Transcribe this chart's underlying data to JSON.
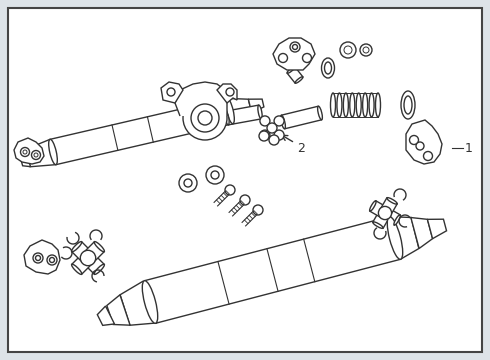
{
  "bg_color": "#dde3e8",
  "border_color": "#444444",
  "line_color": "#333333",
  "fill_color": "#ffffff",
  "figsize": [
    4.9,
    3.6
  ],
  "dpi": 100
}
